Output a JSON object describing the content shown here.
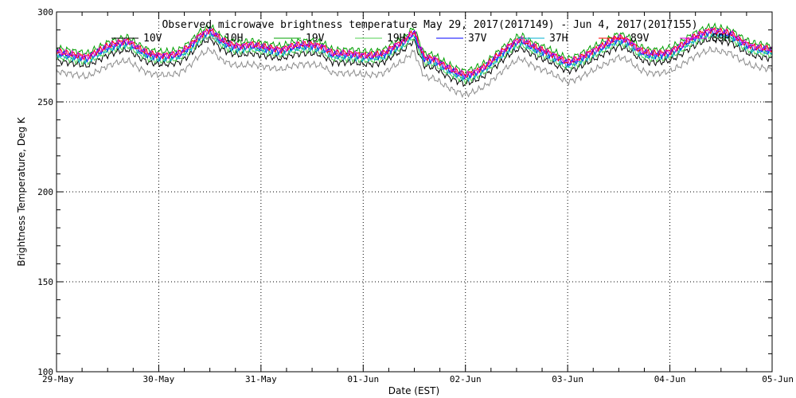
{
  "chart_data": {
    "type": "line",
    "title": "Observed microwave brightness temperature May 29, 2017(2017149) - Jun  4, 2017(2017155)",
    "xlabel": "Date (EST)",
    "ylabel": "Brightness Temperature, Deg K",
    "ylim": [
      100,
      300
    ],
    "xlim": [
      0,
      7
    ],
    "yticks": [
      100,
      150,
      200,
      250,
      300
    ],
    "xtick_labels": [
      "29-May",
      "30-May",
      "31-May",
      "01-Jun",
      "02-Jun",
      "03-Jun",
      "04-Jun",
      "05-Jun"
    ],
    "grid": true,
    "legend_position": "top",
    "x_units": "days since 29-May 00:00",
    "base_profile": {
      "x": [
        0,
        0.1,
        0.2,
        0.3,
        0.4,
        0.5,
        0.6,
        0.7,
        0.75,
        0.8,
        0.9,
        1.0,
        1.1,
        1.2,
        1.3,
        1.4,
        1.5,
        1.55,
        1.6,
        1.7,
        1.8,
        1.9,
        2.0,
        2.1,
        2.2,
        2.3,
        2.4,
        2.5,
        2.6,
        2.7,
        2.8,
        2.9,
        3.0,
        3.1,
        3.2,
        3.3,
        3.4,
        3.45,
        3.5,
        3.55,
        3.6,
        3.7,
        3.8,
        3.9,
        4.0,
        4.1,
        4.2,
        4.3,
        4.4,
        4.5,
        4.55,
        4.6,
        4.7,
        4.8,
        4.9,
        5.0,
        5.1,
        5.2,
        5.3,
        5.4,
        5.5,
        5.6,
        5.7,
        5.8,
        5.9,
        6.0,
        6.1,
        6.2,
        6.3,
        6.4,
        6.5,
        6.6,
        6.7,
        6.8,
        6.9,
        7.0
      ],
      "y": [
        273,
        272,
        271,
        270,
        273,
        276,
        278,
        279,
        277,
        275,
        272,
        271,
        271,
        272,
        276,
        282,
        285,
        283,
        280,
        277,
        276,
        277,
        276,
        275,
        274,
        276,
        277,
        277,
        276,
        272,
        272,
        272,
        271,
        271,
        272,
        276,
        279,
        282,
        284,
        276,
        270,
        269,
        265,
        262,
        260,
        262,
        265,
        270,
        275,
        279,
        280,
        278,
        275,
        273,
        270,
        267,
        269,
        272,
        275,
        278,
        281,
        279,
        274,
        272,
        272,
        273,
        276,
        280,
        283,
        285,
        284,
        283,
        279,
        276,
        275,
        274
      ]
    },
    "series": [
      {
        "name": "10V",
        "color": "#000000",
        "offset": 0
      },
      {
        "name": "10H",
        "color": "#8c8c8c",
        "offset": -6
      },
      {
        "name": "19V",
        "color": "#00a000",
        "offset": 7
      },
      {
        "name": "19H",
        "color": "#50d050",
        "offset": 2
      },
      {
        "name": "37V",
        "color": "#0000ff",
        "offset": 4
      },
      {
        "name": "37H",
        "color": "#00b0d0",
        "offset": 3
      },
      {
        "name": "89V",
        "color": "#ff0000",
        "offset": 5
      },
      {
        "name": "89H",
        "color": "#e000e0",
        "offset": 5
      }
    ]
  }
}
